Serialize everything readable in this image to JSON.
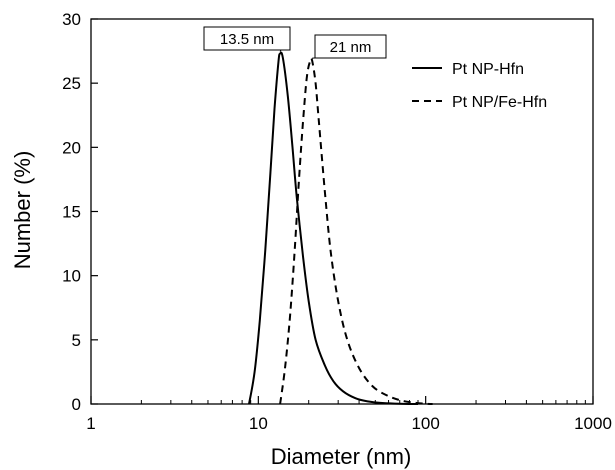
{
  "chart_data": {
    "type": "line",
    "title": "",
    "xlabel": "Diameter (nm)",
    "ylabel": "Number (%)",
    "x_scale": "log",
    "xlim": [
      1,
      1000
    ],
    "ylim": [
      0,
      30
    ],
    "x_ticks": [
      1,
      10,
      100,
      1000
    ],
    "x_tick_labels": [
      "1",
      "10",
      "100",
      "1000"
    ],
    "y_ticks": [
      0,
      5,
      10,
      15,
      20,
      25,
      30
    ],
    "y_tick_labels": [
      "0",
      "5",
      "10",
      "15",
      "20",
      "25",
      "30"
    ],
    "grid": false,
    "legend_position": "top-right",
    "series": [
      {
        "name": "Pt NP-Hfn",
        "line_style": "solid",
        "color": "#000000",
        "x": [
          8.8,
          9.5,
          10.2,
          11,
          11.8,
          12.5,
          13.2,
          13.5,
          14,
          15,
          16,
          17,
          18.5,
          20,
          22,
          25,
          28,
          32,
          38,
          45,
          55,
          70,
          90
        ],
        "y": [
          0,
          2.5,
          6.5,
          12,
          18,
          23,
          26.7,
          27.3,
          27,
          24,
          20,
          16,
          11.5,
          8,
          5,
          3,
          1.8,
          1,
          0.45,
          0.2,
          0.08,
          0.02,
          0
        ]
      },
      {
        "name": "Pt NP/Fe-Hfn",
        "line_style": "dashed",
        "color": "#000000",
        "x": [
          13.5,
          14.5,
          15.5,
          16.5,
          17.5,
          18.5,
          19.5,
          20.5,
          21,
          22,
          23,
          25,
          27,
          30,
          34,
          40,
          48,
          58,
          70,
          85,
          100,
          110
        ],
        "y": [
          0,
          3,
          7,
          12,
          17.5,
          22,
          25.5,
          26.8,
          26.7,
          25,
          22,
          16.5,
          12,
          8,
          5,
          2.8,
          1.4,
          0.7,
          0.3,
          0.1,
          0.02,
          0
        ]
      }
    ],
    "annotations": [
      {
        "text": "13.5 nm",
        "x": 13.5,
        "y": 27.3
      },
      {
        "text": "21 nm",
        "x": 21,
        "y": 26.8
      }
    ]
  }
}
